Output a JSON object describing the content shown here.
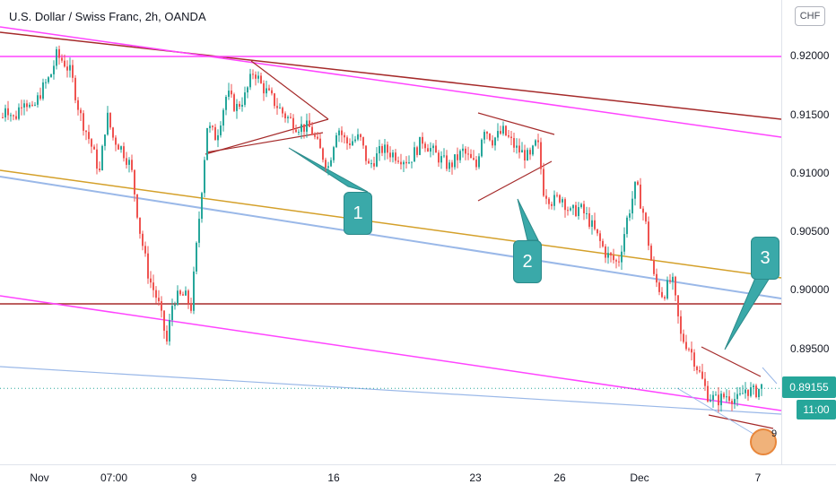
{
  "header": {
    "title": "U.S. Dollar / Swiss Franc, 2h, OANDA"
  },
  "currency_button": "CHF",
  "current_price": "0.89155",
  "countdown": "11:00",
  "notification_count": "9",
  "annotations": [
    {
      "label": "1"
    },
    {
      "label": "2"
    },
    {
      "label": "3"
    }
  ],
  "colors": {
    "up": "#26a69a",
    "down": "#ef5350",
    "magenta": "#ff44ff",
    "maroon": "#a52a2a",
    "gold": "#d4a02a",
    "lightblue": "#9ab8e8",
    "callout": "#3aa9a9"
  },
  "chart_data": {
    "type": "candlestick",
    "price_ticks": [
      "0.92000",
      "0.91500",
      "0.91000",
      "0.90500",
      "0.90000",
      "0.89500"
    ],
    "time_ticks": [
      "Nov",
      "07:00",
      "9",
      "16",
      "23",
      "26",
      "Dec",
      "7"
    ],
    "ylim": [
      0.8855,
      0.9235
    ],
    "last_price": 0.89155,
    "close_path": [
      [
        0,
        0.914
      ],
      [
        5,
        0.9158
      ],
      [
        15,
        0.9145
      ],
      [
        25,
        0.9165
      ],
      [
        35,
        0.9152
      ],
      [
        45,
        0.917
      ],
      [
        55,
        0.9182
      ],
      [
        62,
        0.92
      ],
      [
        70,
        0.9195
      ],
      [
        78,
        0.9185
      ],
      [
        88,
        0.915
      ],
      [
        100,
        0.9125
      ],
      [
        110,
        0.91
      ],
      [
        118,
        0.915
      ],
      [
        125,
        0.913
      ],
      [
        135,
        0.912
      ],
      [
        145,
        0.9105
      ],
      [
        155,
        0.905
      ],
      [
        165,
        0.901
      ],
      [
        175,
        0.899
      ],
      [
        185,
        0.8955
      ],
      [
        192,
        0.8992
      ],
      [
        205,
        0.8995
      ],
      [
        212,
        0.8985
      ],
      [
        222,
        0.907
      ],
      [
        230,
        0.914
      ],
      [
        240,
        0.913
      ],
      [
        252,
        0.9168
      ],
      [
        262,
        0.9155
      ],
      [
        272,
        0.9165
      ],
      [
        282,
        0.9188
      ],
      [
        290,
        0.9175
      ],
      [
        300,
        0.9165
      ],
      [
        315,
        0.915
      ],
      [
        330,
        0.914
      ],
      [
        345,
        0.9138
      ],
      [
        355,
        0.912
      ],
      [
        365,
        0.9105
      ],
      [
        375,
        0.914
      ],
      [
        385,
        0.9125
      ],
      [
        400,
        0.913
      ],
      [
        410,
        0.9105
      ],
      [
        425,
        0.912
      ],
      [
        440,
        0.9115
      ],
      [
        455,
        0.911
      ],
      [
        470,
        0.9128
      ],
      [
        485,
        0.9115
      ],
      [
        500,
        0.9105
      ],
      [
        515,
        0.9118
      ],
      [
        530,
        0.9105
      ],
      [
        538,
        0.914
      ],
      [
        548,
        0.9128
      ],
      [
        560,
        0.9135
      ],
      [
        575,
        0.912
      ],
      [
        590,
        0.9112
      ],
      [
        598,
        0.9128
      ],
      [
        605,
        0.9085
      ],
      [
        615,
        0.9075
      ],
      [
        625,
        0.908
      ],
      [
        635,
        0.9065
      ],
      [
        645,
        0.907
      ],
      [
        655,
        0.906
      ],
      [
        665,
        0.9045
      ],
      [
        675,
        0.903
      ],
      [
        688,
        0.9022
      ],
      [
        698,
        0.906
      ],
      [
        708,
        0.909
      ],
      [
        718,
        0.906
      ],
      [
        728,
        0.901
      ],
      [
        738,
        0.8995
      ],
      [
        748,
        0.901
      ],
      [
        758,
        0.896
      ],
      [
        768,
        0.895
      ],
      [
        778,
        0.893
      ],
      [
        788,
        0.891
      ],
      [
        798,
        0.8905
      ],
      [
        810,
        0.891
      ],
      [
        822,
        0.8905
      ],
      [
        830,
        0.8915
      ],
      [
        840,
        0.8912
      ],
      [
        850,
        0.8918
      ]
    ]
  }
}
